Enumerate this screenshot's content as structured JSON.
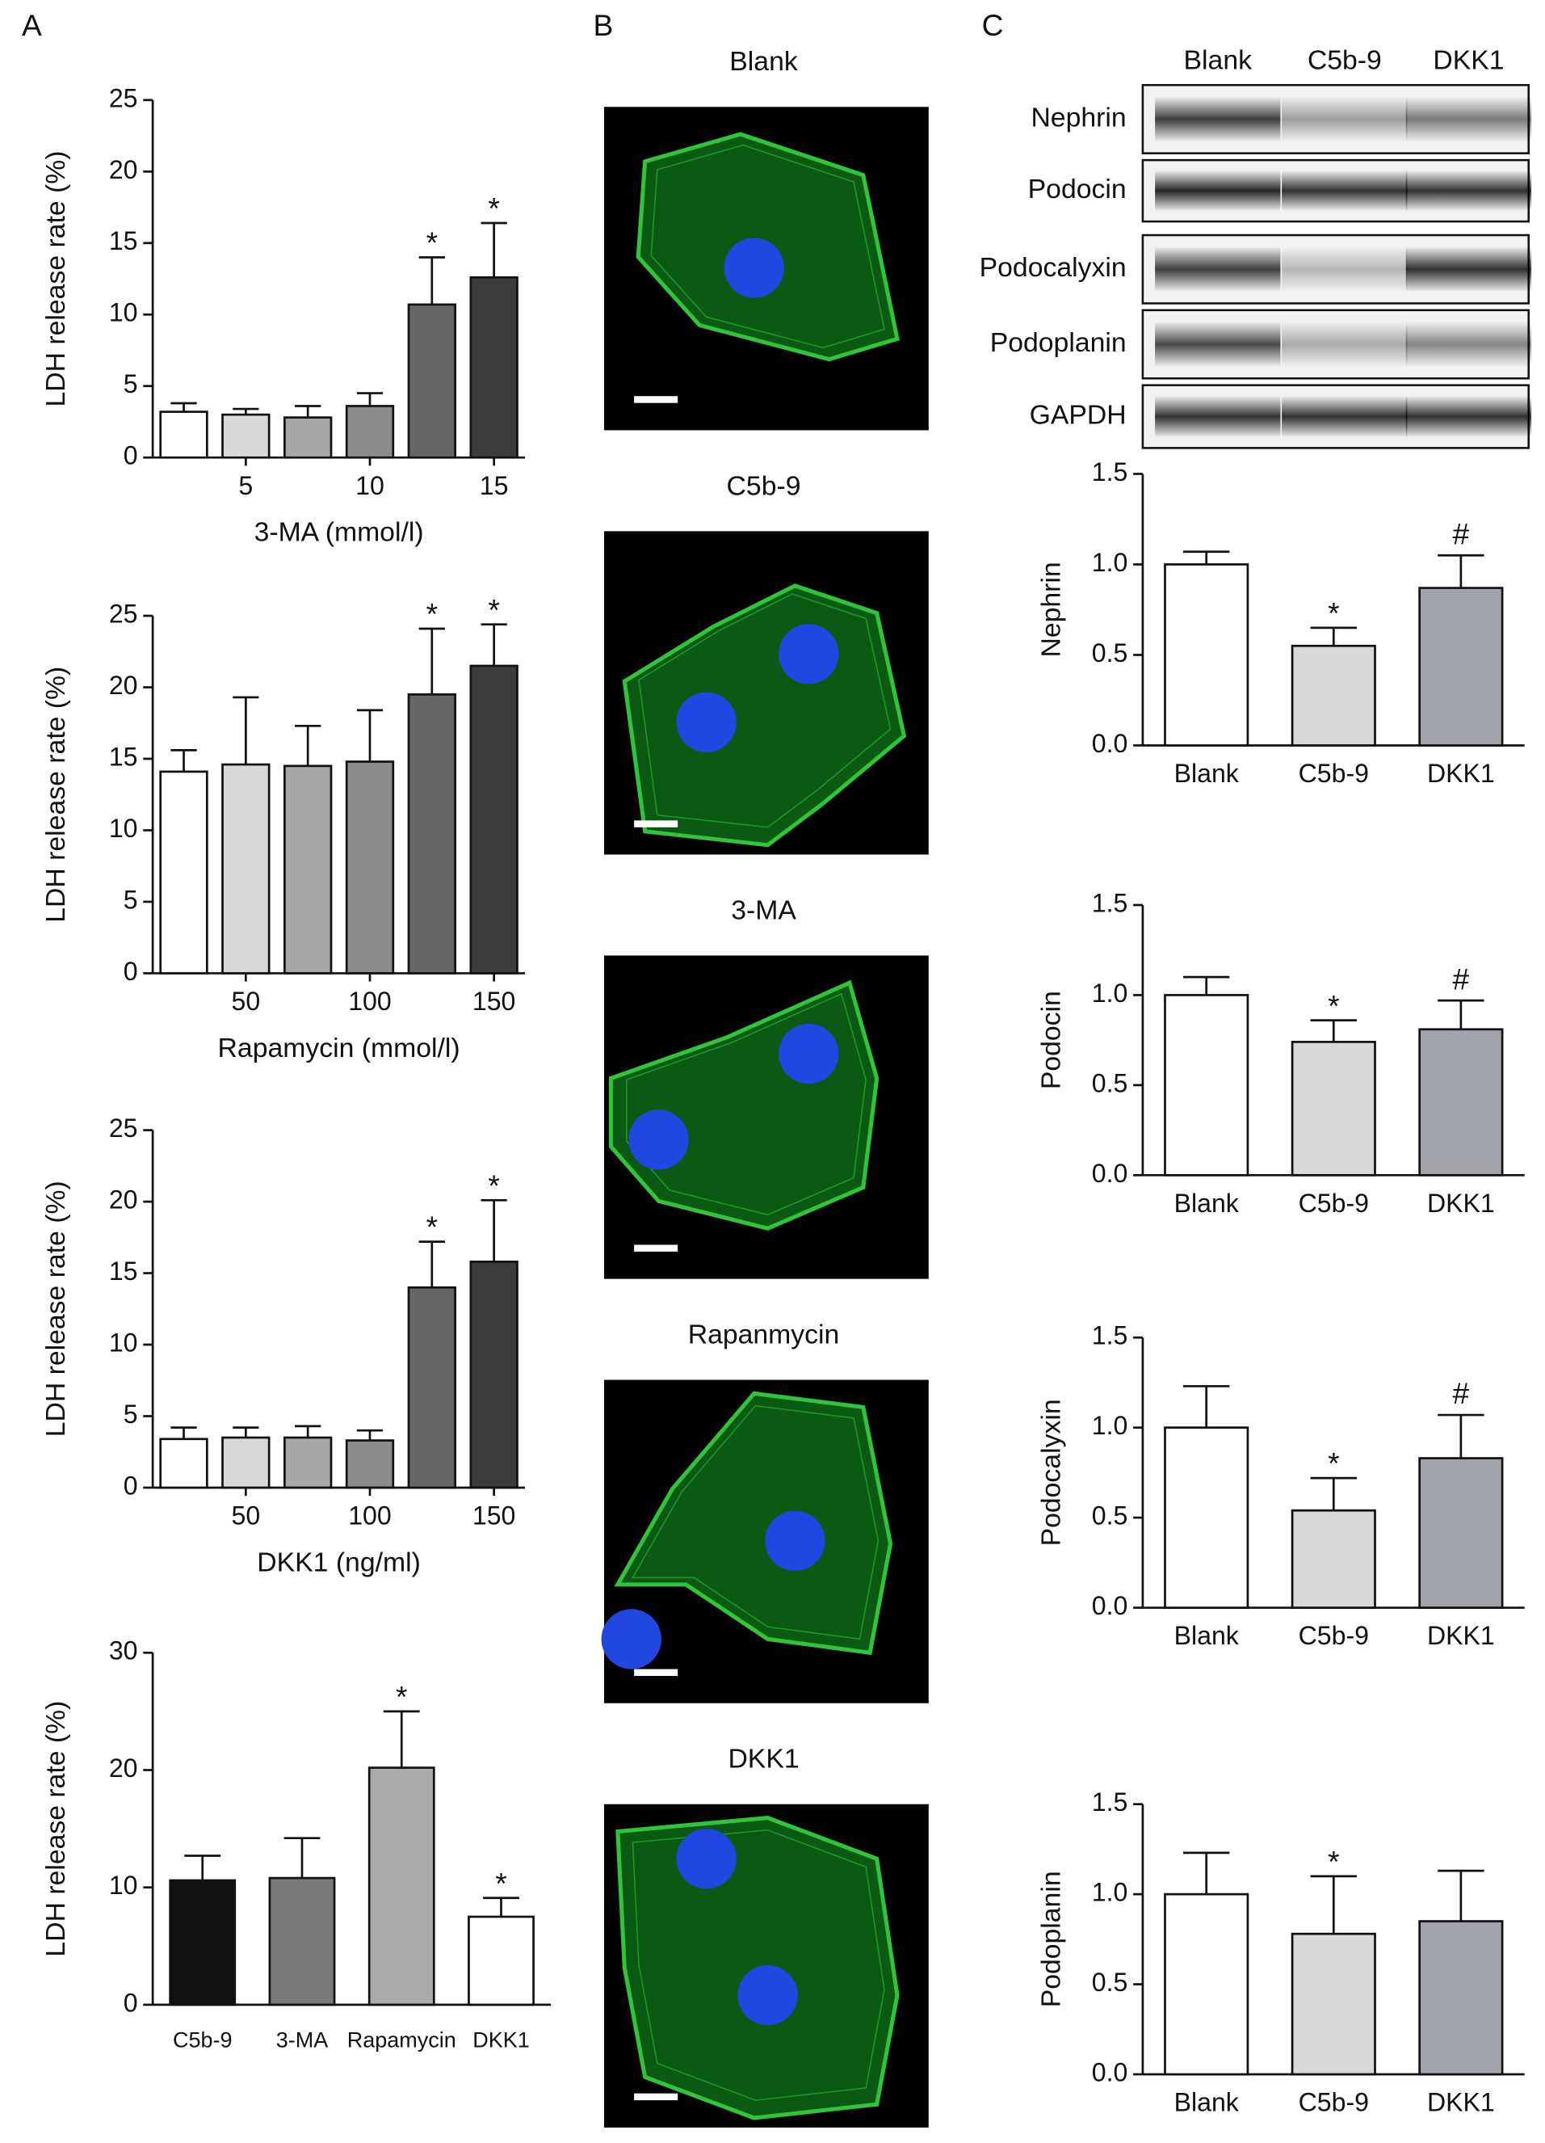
{
  "panel_labels": [
    "A",
    "B",
    "C"
  ],
  "micrographs": {
    "titles": [
      "Blank",
      "C5b-9",
      "3-MA",
      "Rapanmycin",
      "DKK1"
    ]
  },
  "blot": {
    "lanes": [
      "Blank",
      "C5b-9",
      "DKK1"
    ],
    "rows": [
      "Nephrin",
      "Podocin",
      "Podocalyxin",
      "Podoplanin",
      "GAPDH"
    ]
  },
  "chart_data": [
    {
      "type": "bar",
      "ylabel": "LDH release rate (%)",
      "xlabel": "3-MA (mmol/l)",
      "categories": [
        null,
        "5",
        null,
        "10",
        null,
        "15"
      ],
      "values": [
        3.2,
        3.0,
        2.8,
        3.6,
        10.7,
        12.6
      ],
      "errors": [
        0.6,
        0.4,
        0.8,
        0.9,
        3.3,
        3.8
      ],
      "markers": [
        null,
        null,
        null,
        null,
        "*",
        "*"
      ],
      "colors": [
        "#ffffff",
        "#d9d9d9",
        "#a8a8a8",
        "#8c8c8c",
        "#666666",
        "#3c3c3c"
      ],
      "ylim": [
        0,
        25
      ],
      "yticks": [
        0,
        5,
        10,
        15,
        20,
        25
      ]
    },
    {
      "type": "bar",
      "ylabel": "LDH release rate (%)",
      "xlabel": "Rapamycin (mmol/l)",
      "categories": [
        null,
        "50",
        null,
        "100",
        null,
        "150"
      ],
      "values": [
        14.1,
        14.6,
        14.5,
        14.8,
        19.5,
        21.5
      ],
      "errors": [
        1.5,
        4.7,
        2.8,
        3.6,
        4.6,
        2.9
      ],
      "markers": [
        null,
        null,
        null,
        null,
        "*",
        "*"
      ],
      "colors": [
        "#ffffff",
        "#d9d9d9",
        "#a8a8a8",
        "#8c8c8c",
        "#666666",
        "#3c3c3c"
      ],
      "ylim": [
        0,
        25
      ],
      "yticks": [
        0,
        5,
        10,
        15,
        20,
        25
      ]
    },
    {
      "type": "bar",
      "ylabel": "LDH release rate (%)",
      "xlabel": "DKK1 (ng/ml)",
      "categories": [
        null,
        "50",
        null,
        "100",
        null,
        "150"
      ],
      "values": [
        3.4,
        3.5,
        3.5,
        3.3,
        14.0,
        15.8
      ],
      "errors": [
        0.8,
        0.7,
        0.8,
        0.7,
        3.2,
        4.3
      ],
      "markers": [
        null,
        null,
        null,
        null,
        "*",
        "*"
      ],
      "colors": [
        "#ffffff",
        "#d9d9d9",
        "#a8a8a8",
        "#8c8c8c",
        "#666666",
        "#3c3c3c"
      ],
      "ylim": [
        0,
        25
      ],
      "yticks": [
        0,
        5,
        10,
        15,
        20,
        25
      ]
    },
    {
      "type": "bar",
      "ylabel": "LDH release rate (%)",
      "categories": [
        "C5b-9",
        "3-MA",
        "Rapamycin",
        "DKK1"
      ],
      "values": [
        10.6,
        10.8,
        20.2,
        7.5
      ],
      "errors": [
        2.1,
        3.4,
        4.8,
        1.6
      ],
      "markers": [
        null,
        null,
        "*",
        "*"
      ],
      "colors": [
        "#111111",
        "#7a7a7a",
        "#ababab",
        "#ffffff"
      ],
      "ylim": [
        0,
        30
      ],
      "yticks": [
        0,
        10,
        20,
        30
      ]
    },
    {
      "type": "bar",
      "ylabel": "Nephrin",
      "categories": [
        "Blank",
        "C5b-9",
        "DKK1"
      ],
      "values": [
        1.0,
        0.55,
        0.87
      ],
      "errors": [
        0.07,
        0.1,
        0.18
      ],
      "markers": [
        null,
        "*",
        "#"
      ],
      "colors": [
        "#ffffff",
        "#d9d9d9",
        "#a3a3aa"
      ],
      "ylim": [
        0,
        1.5
      ],
      "yticks": [
        {
          "value": 0,
          "label": "0.0"
        },
        {
          "value": 0.5,
          "label": "0.5"
        },
        {
          "value": 1,
          "label": "1.0"
        },
        {
          "value": 1.5,
          "label": "1.5"
        }
      ]
    },
    {
      "type": "bar",
      "ylabel": "Podocin",
      "categories": [
        "Blank",
        "C5b-9",
        "DKK1"
      ],
      "values": [
        1.0,
        0.74,
        0.81
      ],
      "errors": [
        0.1,
        0.12,
        0.16
      ],
      "markers": [
        null,
        "*",
        "#"
      ],
      "colors": [
        "#ffffff",
        "#d9d9d9",
        "#a3a3aa"
      ],
      "ylim": [
        0,
        1.5
      ],
      "yticks": [
        {
          "value": 0,
          "label": "0.0"
        },
        {
          "value": 0.5,
          "label": "0.5"
        },
        {
          "value": 1,
          "label": "1.0"
        },
        {
          "value": 1.5,
          "label": "1.5"
        }
      ]
    },
    {
      "type": "bar",
      "ylabel": "Podocalyxin",
      "categories": [
        "Blank",
        "C5b-9",
        "DKK1"
      ],
      "values": [
        1.0,
        0.54,
        0.83
      ],
      "errors": [
        0.23,
        0.18,
        0.24
      ],
      "markers": [
        null,
        "*",
        "#"
      ],
      "colors": [
        "#ffffff",
        "#d9d9d9",
        "#a3a3aa"
      ],
      "ylim": [
        0,
        1.5
      ],
      "yticks": [
        {
          "value": 0,
          "label": "0.0"
        },
        {
          "value": 0.5,
          "label": "0.5"
        },
        {
          "value": 1,
          "label": "1.0"
        },
        {
          "value": 1.5,
          "label": "1.5"
        }
      ]
    },
    {
      "type": "bar",
      "ylabel": "Podoplanin",
      "categories": [
        "Blank",
        "C5b-9",
        "DKK1"
      ],
      "values": [
        1.0,
        0.78,
        0.85
      ],
      "errors": [
        0.23,
        0.32,
        0.28
      ],
      "markers": [
        null,
        "*",
        null
      ],
      "colors": [
        "#ffffff",
        "#d9d9d9",
        "#a3a3aa"
      ],
      "ylim": [
        0,
        1.5
      ],
      "yticks": [
        {
          "value": 0,
          "label": "0.0"
        },
        {
          "value": 0.5,
          "label": "0.5"
        },
        {
          "value": 1,
          "label": "1.0"
        },
        {
          "value": 1.5,
          "label": "1.5"
        }
      ]
    }
  ]
}
